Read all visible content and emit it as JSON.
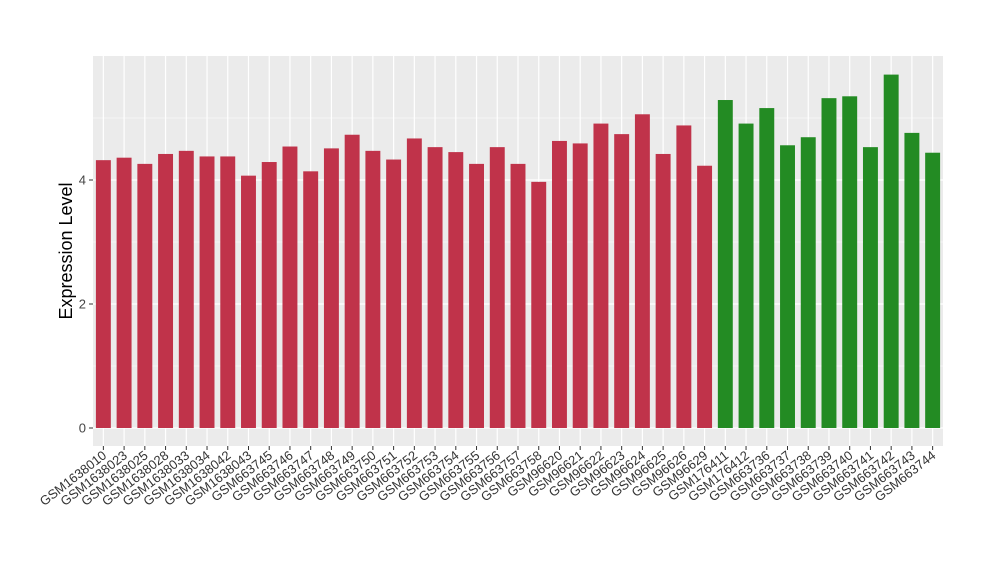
{
  "chart_data": {
    "type": "bar",
    "title": "",
    "xlabel": "",
    "ylabel": "Expression Level",
    "ylim": [
      0,
      6
    ],
    "y_ticks": [
      0,
      2,
      4
    ],
    "grid": true,
    "legend": "none",
    "colors": {
      "panel_background": "#ebebeb",
      "grid": "#ffffff",
      "group_1": "#c0334a",
      "group_2": "#238b23"
    },
    "categories": [
      "GSM1638010",
      "GSM1638023",
      "GSM1638025",
      "GSM1638028",
      "GSM1638033",
      "GSM1638034",
      "GSM1638042",
      "GSM1638043",
      "GSM663745",
      "GSM663746",
      "GSM663747",
      "GSM663748",
      "GSM663749",
      "GSM663750",
      "GSM663751",
      "GSM663752",
      "GSM663753",
      "GSM663754",
      "GSM663755",
      "GSM663756",
      "GSM663757",
      "GSM663758",
      "GSM96620",
      "GSM96621",
      "GSM96622",
      "GSM96623",
      "GSM96624",
      "GSM96625",
      "GSM96626",
      "GSM96629",
      "GSM176411",
      "GSM176412",
      "GSM663736",
      "GSM663737",
      "GSM663738",
      "GSM663739",
      "GSM663740",
      "GSM663741",
      "GSM663742",
      "GSM663743",
      "GSM663744"
    ],
    "values": [
      4.32,
      4.36,
      4.26,
      4.42,
      4.47,
      4.38,
      4.38,
      4.07,
      4.29,
      4.54,
      4.14,
      4.51,
      4.73,
      4.47,
      4.33,
      4.67,
      4.53,
      4.45,
      4.26,
      4.53,
      4.26,
      3.97,
      4.63,
      4.59,
      4.91,
      4.74,
      5.06,
      4.42,
      4.88,
      4.23,
      5.29,
      4.91,
      5.16,
      4.56,
      4.69,
      5.32,
      5.35,
      4.53,
      5.7,
      4.76,
      4.44
    ],
    "groups": [
      1,
      1,
      1,
      1,
      1,
      1,
      1,
      1,
      1,
      1,
      1,
      1,
      1,
      1,
      1,
      1,
      1,
      1,
      1,
      1,
      1,
      1,
      1,
      1,
      1,
      1,
      1,
      1,
      1,
      1,
      2,
      2,
      2,
      2,
      2,
      2,
      2,
      2,
      2,
      2,
      2
    ]
  }
}
